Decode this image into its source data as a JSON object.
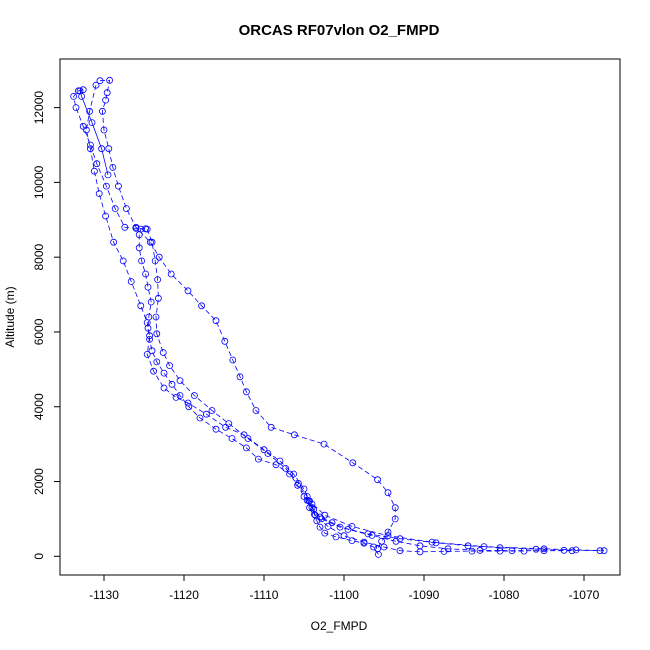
{
  "chart_data": {
    "type": "line",
    "title": "ORCAS RF07vlon O2_FMPD",
    "xlabel": "O2_FMPD",
    "ylabel": "Altitude (m)",
    "xlim": [
      -1135.5,
      -1065.5
    ],
    "ylim": [
      -500,
      13300
    ],
    "x_ticks": [
      -1130,
      -1120,
      -1110,
      -1100,
      -1090,
      -1080,
      -1070
    ],
    "x_tick_labels": [
      "-1130",
      "-1120",
      "-1110",
      "-1100",
      "-1090",
      "-1080",
      "-1070"
    ],
    "y_ticks": [
      0,
      2000,
      4000,
      6000,
      8000,
      10000,
      12000
    ],
    "y_tick_labels": [
      "0",
      "2000",
      "4000",
      "6000",
      "8000",
      "10000",
      "12000"
    ],
    "grid": false,
    "legend": "none",
    "series": [
      {
        "color": "#0000ff",
        "marker": "open-circle",
        "line": "dashed",
        "points": [
          [
            -1095.7,
            50
          ],
          [
            -1096.3,
            250
          ],
          [
            -1097.5,
            350
          ],
          [
            -1099.0,
            420
          ],
          [
            -1101.0,
            520
          ],
          [
            -1102.4,
            620
          ],
          [
            -1103.0,
            780
          ],
          [
            -1103.4,
            950
          ],
          [
            -1103.7,
            1120
          ],
          [
            -1104.0,
            1300
          ],
          [
            -1104.4,
            1480
          ],
          [
            -1105.0,
            1600
          ],
          [
            -1105.8,
            1900
          ],
          [
            -1106.8,
            2200
          ],
          [
            -1108.5,
            2450
          ],
          [
            -1110.7,
            2600
          ],
          [
            -1112.2,
            2900
          ],
          [
            -1114.0,
            3150
          ],
          [
            -1116.0,
            3400
          ],
          [
            -1118.0,
            3700
          ],
          [
            -1119.4,
            4000
          ],
          [
            -1120.5,
            4300
          ],
          [
            -1121.5,
            4600
          ],
          [
            -1122.5,
            4900
          ],
          [
            -1123.4,
            5200
          ],
          [
            -1124.0,
            5500
          ],
          [
            -1124.3,
            5800
          ],
          [
            -1124.5,
            6100
          ],
          [
            -1124.4,
            6400
          ],
          [
            -1124.1,
            6800
          ],
          [
            -1124.5,
            7200
          ],
          [
            -1124.8,
            7550
          ],
          [
            -1125.3,
            7900
          ],
          [
            -1125.6,
            8250
          ],
          [
            -1125.6,
            8600
          ],
          [
            -1125.4,
            8750
          ],
          [
            -1124.8,
            8760
          ],
          [
            -1126.0,
            8770
          ],
          [
            -1127.4,
            8800
          ],
          [
            -1128.6,
            9300
          ],
          [
            -1129.7,
            9900
          ],
          [
            -1130.9,
            10500
          ],
          [
            -1131.7,
            11000
          ],
          [
            -1132.6,
            11500
          ],
          [
            -1133.5,
            12000
          ],
          [
            -1133.8,
            12300
          ],
          [
            -1133.2,
            12450
          ],
          [
            -1132.6,
            12480
          ]
        ]
      },
      {
        "color": "#0000ff",
        "marker": "open-circle",
        "line": "dashed",
        "points": [
          [
            -1130.5,
            12720
          ],
          [
            -1129.3,
            12730
          ],
          [
            -1129.6,
            12400
          ],
          [
            -1129.8,
            12200
          ],
          [
            -1130.2,
            11900
          ],
          [
            -1130.0,
            11400
          ],
          [
            -1129.4,
            10900
          ],
          [
            -1128.9,
            10400
          ],
          [
            -1128.2,
            9900
          ],
          [
            -1127.2,
            9300
          ],
          [
            -1126.0,
            8800
          ],
          [
            -1124.2,
            8400
          ],
          [
            -1123.1,
            8000
          ],
          [
            -1121.6,
            7550
          ],
          [
            -1119.5,
            7100
          ],
          [
            -1117.8,
            6700
          ],
          [
            -1116.0,
            6300
          ],
          [
            -1114.9,
            5750
          ],
          [
            -1113.9,
            5250
          ],
          [
            -1113.0,
            4800
          ],
          [
            -1112.2,
            4400
          ],
          [
            -1111.0,
            3900
          ],
          [
            -1109.1,
            3450
          ],
          [
            -1106.2,
            3250
          ],
          [
            -1102.5,
            3000
          ],
          [
            -1098.9,
            2500
          ],
          [
            -1095.8,
            2050
          ],
          [
            -1094.5,
            1700
          ],
          [
            -1093.6,
            1300
          ],
          [
            -1093.6,
            1000
          ],
          [
            -1094.5,
            650
          ],
          [
            -1095.3,
            400
          ],
          [
            -1095.8,
            200
          ]
        ]
      },
      {
        "color": "#0000ff",
        "marker": "open-circle",
        "line": "dashed",
        "points": [
          [
            -1131.0,
            12600
          ],
          [
            -1131.8,
            11900
          ],
          [
            -1132.2,
            11400
          ],
          [
            -1131.7,
            10900
          ],
          [
            -1131.2,
            10300
          ],
          [
            -1130.6,
            9700
          ],
          [
            -1129.8,
            9100
          ],
          [
            -1128.8,
            8400
          ],
          [
            -1127.6,
            7900
          ],
          [
            -1126.6,
            7350
          ],
          [
            -1125.4,
            6700
          ],
          [
            -1124.6,
            6250
          ],
          [
            -1124.3,
            5900
          ],
          [
            -1124.6,
            5400
          ],
          [
            -1123.8,
            4950
          ],
          [
            -1122.5,
            4500
          ],
          [
            -1121.0,
            4250
          ],
          [
            -1119.5,
            4100
          ],
          [
            -1117.2,
            3800
          ],
          [
            -1114.8,
            3450
          ],
          [
            -1112.5,
            3250
          ],
          [
            -1110.0,
            2850
          ],
          [
            -1108.0,
            2550
          ],
          [
            -1106.3,
            2200
          ],
          [
            -1105.0,
            1800
          ],
          [
            -1104.3,
            1480
          ],
          [
            -1102.4,
            1100
          ],
          [
            -1099.0,
            800
          ],
          [
            -1094.5,
            550
          ],
          [
            -1089.0,
            380
          ],
          [
            -1082.5,
            260
          ],
          [
            -1075.0,
            200
          ],
          [
            -1071.0,
            170
          ],
          [
            -1067.5,
            150
          ]
        ]
      },
      {
        "color": "#0000ff",
        "marker": "open-circle",
        "line": "dashed",
        "points": [
          [
            -1124.6,
            8750
          ],
          [
            -1124.0,
            8400
          ],
          [
            -1123.6,
            7900
          ],
          [
            -1123.3,
            7400
          ],
          [
            -1123.2,
            6900
          ],
          [
            -1123.5,
            6400
          ],
          [
            -1123.4,
            5950
          ],
          [
            -1122.6,
            5450
          ],
          [
            -1121.8,
            5100
          ],
          [
            -1120.5,
            4700
          ],
          [
            -1118.7,
            4300
          ],
          [
            -1116.5,
            3900
          ],
          [
            -1114.4,
            3550
          ],
          [
            -1112.0,
            3150
          ],
          [
            -1109.5,
            2750
          ],
          [
            -1107.3,
            2350
          ],
          [
            -1105.7,
            1950
          ],
          [
            -1104.6,
            1600
          ],
          [
            -1104.3,
            1300
          ],
          [
            -1102.8,
            1000
          ],
          [
            -1100.5,
            780
          ],
          [
            -1097.0,
            600
          ],
          [
            -1093.0,
            470
          ],
          [
            -1088.5,
            360
          ],
          [
            -1084.5,
            280
          ],
          [
            -1080.5,
            230
          ],
          [
            -1076.0,
            190
          ],
          [
            -1072.5,
            160
          ],
          [
            -1068.0,
            150
          ]
        ]
      },
      {
        "color": "#0000ff",
        "marker": "open-circle",
        "line": "dashed",
        "points": [
          [
            -1104.6,
            1500
          ],
          [
            -1103.8,
            1250
          ],
          [
            -1103.0,
            1050
          ],
          [
            -1101.5,
            900
          ],
          [
            -1099.5,
            720
          ],
          [
            -1096.5,
            560
          ],
          [
            -1093.5,
            400
          ],
          [
            -1090.5,
            280
          ],
          [
            -1087.0,
            200
          ],
          [
            -1083.0,
            160
          ],
          [
            -1079.0,
            150
          ],
          [
            -1075.0,
            150
          ],
          [
            -1071.5,
            150
          ]
        ]
      },
      {
        "color": "#0000ff",
        "marker": "open-circle",
        "line": "dashed",
        "points": [
          [
            -1104.0,
            1400
          ],
          [
            -1103.6,
            1100
          ],
          [
            -1102.0,
            800
          ],
          [
            -1100.0,
            550
          ],
          [
            -1097.5,
            380
          ],
          [
            -1095.0,
            250
          ],
          [
            -1093.0,
            150
          ],
          [
            -1090.5,
            120
          ],
          [
            -1087.5,
            130
          ],
          [
            -1084.0,
            140
          ],
          [
            -1080.5,
            140
          ],
          [
            -1077.5,
            140
          ]
        ]
      },
      {
        "color": "#0000ff",
        "marker": "open-circle",
        "line": "solid",
        "points": [
          [
            -1133.0,
            12450
          ],
          [
            -1132.8,
            12300
          ],
          [
            -1131.5,
            11600
          ],
          [
            -1130.3,
            10900
          ],
          [
            -1129.5,
            10200
          ]
        ]
      }
    ]
  }
}
